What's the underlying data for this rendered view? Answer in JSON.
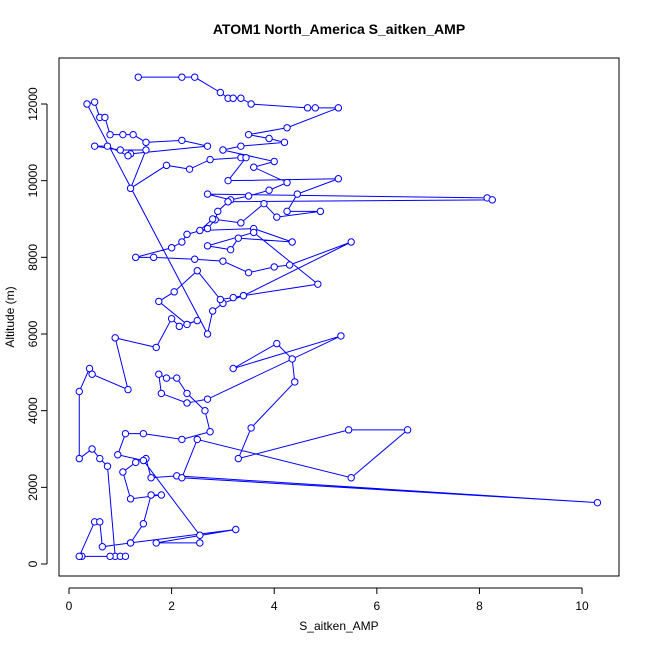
{
  "chart_data": {
    "type": "line",
    "title": "ATOM1 North_America S_aitken_AMP",
    "x_label": "S_aitken_AMP",
    "y_label": "Altitude (m)",
    "xlim": [
      -0.195,
      10.72
    ],
    "ylim": [
      -313,
      13200
    ],
    "xticks": [
      0,
      2,
      4,
      6,
      8,
      10
    ],
    "yticks": [
      0,
      2000,
      4000,
      6000,
      8000,
      10000,
      12000
    ],
    "grid": false,
    "markers": true,
    "series": [
      {
        "color": "#0000ff",
        "x": [
          1.35,
          2.2,
          2.45,
          2.95,
          3.1,
          3.2,
          3.35,
          3.55,
          4.65,
          4.8,
          5.25,
          4.25,
          3.5,
          3.9,
          4.2,
          3.35,
          3.0,
          4.0,
          3.6,
          4.25,
          3.9,
          3.5,
          3.15,
          2.7,
          8.15,
          8.25,
          3.1,
          2.9,
          2.85,
          2.7,
          2.3,
          2.2,
          2.0,
          1.3,
          1.65,
          2.45,
          3.0,
          3.5,
          4.0,
          4.3,
          5.5,
          3.4,
          3.0,
          2.8,
          2.7,
          0.35,
          0.5,
          0.6,
          0.7,
          0.8,
          1.05,
          1.25,
          1.5,
          2.2,
          2.7,
          1.2,
          1.15,
          0.75,
          0.5,
          1.0,
          1.5,
          1.2,
          1.9,
          2.35,
          2.75,
          3.35,
          3.45,
          3.1,
          5.25,
          4.45,
          4.25,
          4.9,
          4.05,
          3.8,
          3.35,
          2.8,
          2.55,
          3.6,
          4.35,
          3.3,
          3.15,
          2.7,
          3.6,
          4.85,
          3.4,
          3.2,
          2.95,
          2.5,
          2.05,
          1.75,
          2.3,
          2.5,
          2.15,
          2.0,
          1.7,
          0.9,
          1.15,
          0.45,
          0.4,
          0.2,
          0.2,
          0.45,
          0.6,
          0.75,
          0.9,
          1.0,
          1.1,
          0.8,
          0.25,
          0.2,
          0.5,
          0.6,
          0.65,
          1.2,
          1.45,
          1.6,
          1.8,
          1.2,
          1.05,
          1.3,
          1.5,
          1.6,
          2.1,
          10.3,
          2.2,
          2.5,
          5.5,
          6.6,
          5.45,
          3.3,
          3.55,
          4.4,
          4.35,
          4.05,
          3.2,
          5.3,
          2.7,
          2.3,
          1.8,
          1.75,
          1.9,
          2.1,
          2.3,
          2.65,
          2.75,
          2.2,
          1.45,
          1.1,
          0.95,
          1.45,
          2.55,
          2.55,
          1.7,
          3.25,
          1.2
        ],
        "values": [
          12700,
          12700,
          12700,
          12300,
          12150,
          12150,
          12150,
          12000,
          11900,
          11900,
          11900,
          11380,
          11200,
          11100,
          11000,
          10900,
          10800,
          10500,
          10350,
          9950,
          9750,
          9600,
          9500,
          9650,
          9550,
          9500,
          9450,
          9200,
          8980,
          8750,
          8600,
          8400,
          8250,
          8000,
          8000,
          7950,
          7900,
          7600,
          7750,
          7800,
          8400,
          7000,
          6800,
          6600,
          6000,
          12000,
          12050,
          11650,
          11650,
          11200,
          11200,
          11200,
          11000,
          11050,
          10900,
          10700,
          10650,
          10900,
          10900,
          10800,
          10800,
          9800,
          10400,
          10300,
          10550,
          10600,
          10600,
          10000,
          10050,
          9650,
          9200,
          9200,
          9050,
          9400,
          8900,
          9000,
          8700,
          8750,
          8400,
          8500,
          8200,
          8300,
          8650,
          7300,
          7000,
          6950,
          6900,
          7650,
          7100,
          6850,
          6250,
          6350,
          6200,
          6400,
          5650,
          5900,
          4550,
          4950,
          5100,
          4500,
          2750,
          3000,
          2750,
          2550,
          200,
          200,
          200,
          200,
          200,
          200,
          1100,
          1100,
          450,
          550,
          1050,
          1800,
          1800,
          1700,
          2400,
          2650,
          2750,
          2250,
          2300,
          1600,
          2250,
          3250,
          2250,
          3500,
          3500,
          2750,
          3550,
          4750,
          5350,
          5750,
          5100,
          5950,
          4300,
          4200,
          4450,
          4950,
          4850,
          4850,
          4450,
          4000,
          3450,
          3250,
          3400,
          3400,
          2850,
          2700,
          750,
          550,
          550,
          900,
          550
        ]
      }
    ]
  }
}
